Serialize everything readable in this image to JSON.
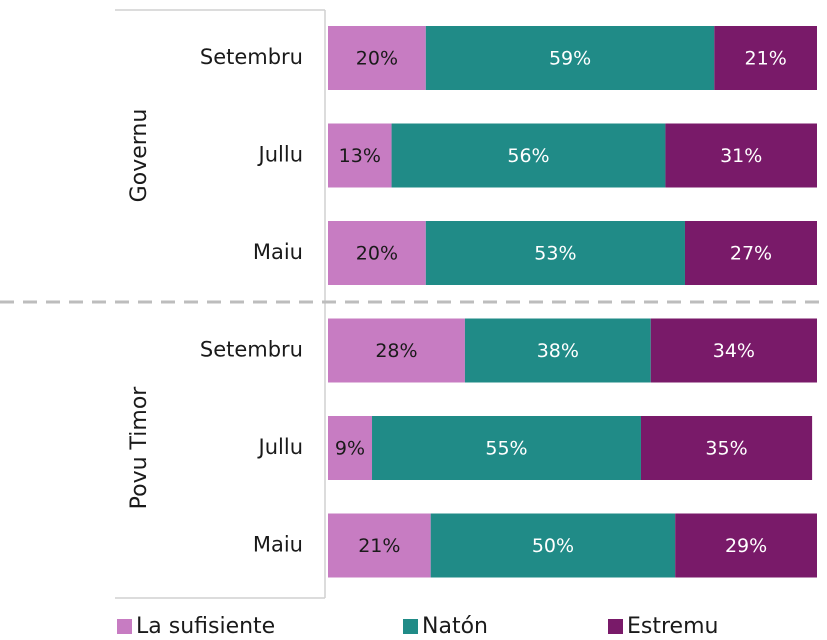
{
  "chart_data": {
    "type": "bar",
    "orientation": "horizontal",
    "stacked": true,
    "groups": [
      {
        "name": "Governu",
        "categories": [
          "Setembru",
          "Jullu",
          "Maiu"
        ]
      },
      {
        "name": "Povu Timor",
        "categories": [
          "Setembru",
          "Jullu",
          "Maiu"
        ]
      }
    ],
    "xlim": [
      0,
      100
    ],
    "series": [
      {
        "name": "La sufisiente",
        "color": "#c77cc2",
        "label_color": "#1a1a1a",
        "values": [
          20,
          13,
          20,
          28,
          9,
          21
        ],
        "value_labels": [
          "20%",
          "13%",
          "20%",
          "28%",
          "9%",
          "21%"
        ]
      },
      {
        "name": "Natón",
        "color": "#208b87",
        "label_color": "#ffffff",
        "values": [
          59,
          56,
          53,
          38,
          55,
          50
        ],
        "value_labels": [
          "59%",
          "56%",
          "53%",
          "38%",
          "55%",
          "50%"
        ]
      },
      {
        "name": "Estremu",
        "color": "#791a69",
        "label_color": "#ffffff",
        "values": [
          21,
          31,
          27,
          34,
          35,
          29
        ],
        "value_labels": [
          "21%",
          "31%",
          "27%",
          "34%",
          "35%",
          "29%"
        ]
      }
    ]
  }
}
